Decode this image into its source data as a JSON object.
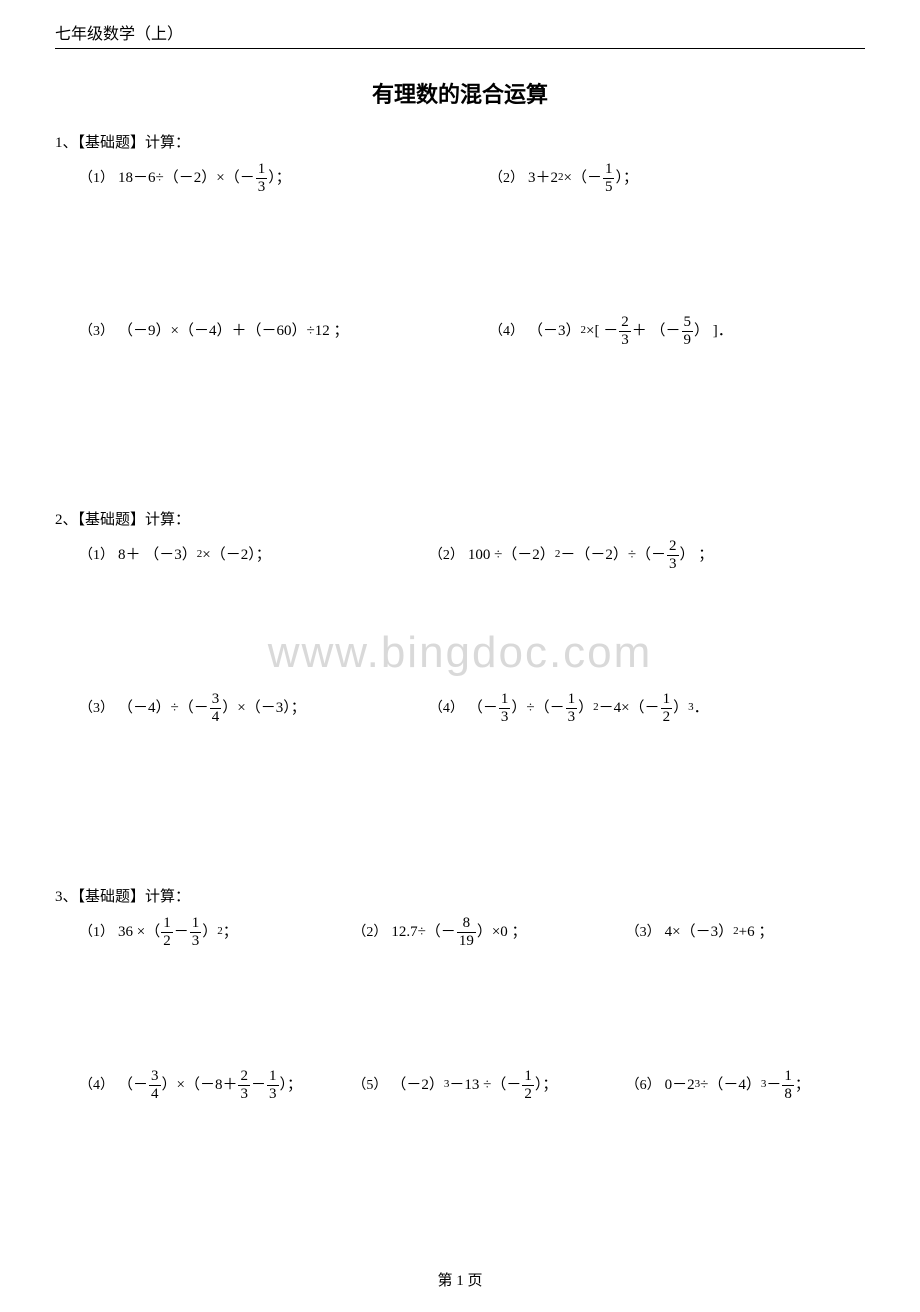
{
  "header": "七年级数学（上）",
  "title": "有理数的混合运算",
  "watermark": "www.bingdoc.com",
  "footer": "第 1 页",
  "sections": [
    {
      "label": "1、【基础题】计算：",
      "rows": [
        {
          "layout": "w2",
          "items": [
            {
              "idx": "（1）",
              "math": [
                {
                  "t": "18－6"
                },
                {
                  "t": "÷"
                },
                {
                  "t": "（－2）×（－"
                },
                {
                  "frac": {
                    "n": "1",
                    "d": "3"
                  }
                },
                {
                  "t": "）；"
                }
              ]
            },
            {
              "idx": "（2）",
              "math": [
                {
                  "t": "3＋2"
                },
                {
                  "sup": "2"
                },
                {
                  "t": " ×（－"
                },
                {
                  "frac": {
                    "n": "1",
                    "d": "5"
                  }
                },
                {
                  "t": "）；"
                }
              ]
            }
          ]
        },
        {
          "layout": "w2",
          "items": [
            {
              "idx": "（3）",
              "math": [
                {
                  "t": "（－9）×（－4）＋（－60）÷12 ；"
                }
              ]
            },
            {
              "idx": "（4）",
              "math": [
                {
                  "t": "（－3）"
                },
                {
                  "sup": "2"
                },
                {
                  "t": "×[  －"
                },
                {
                  "frac": {
                    "n": "2",
                    "d": "3"
                  }
                },
                {
                  "t": "＋ （－"
                },
                {
                  "frac": {
                    "n": "5",
                    "d": "9"
                  }
                },
                {
                  "t": "）  ]．"
                }
              ]
            }
          ]
        }
      ]
    },
    {
      "label": "2、【基础题】计算：",
      "rows": [
        {
          "layout": "w2b",
          "items": [
            {
              "idx": "（1）",
              "math": [
                {
                  "t": "8＋ （－3）"
                },
                {
                  "sup": "2"
                },
                {
                  "t": " ×（－2）；"
                }
              ]
            },
            {
              "idx": "（2）",
              "math": [
                {
                  "t": "100 ÷（－2）"
                },
                {
                  "sup": "2"
                },
                {
                  "t": " －（－2）÷（－"
                },
                {
                  "frac": {
                    "n": "2",
                    "d": "3"
                  }
                },
                {
                  "t": "） ；"
                }
              ]
            }
          ]
        },
        {
          "layout": "w2b",
          "items": [
            {
              "idx": "（3）",
              "math": [
                {
                  "t": "（－4）÷（－"
                },
                {
                  "frac": {
                    "n": "3",
                    "d": "4"
                  }
                },
                {
                  "t": "）×（－3）；"
                }
              ]
            },
            {
              "idx": "（4）",
              "math": [
                {
                  "t": "（－"
                },
                {
                  "frac": {
                    "n": "1",
                    "d": "3"
                  }
                },
                {
                  "t": "）÷（－"
                },
                {
                  "frac": {
                    "n": "1",
                    "d": "3"
                  }
                },
                {
                  "t": "）"
                },
                {
                  "sup": "2"
                },
                {
                  "t": " －4×（－"
                },
                {
                  "frac": {
                    "n": "1",
                    "d": "2"
                  }
                },
                {
                  "t": "）"
                },
                {
                  "sup": "3"
                },
                {
                  "t": "．"
                }
              ]
            }
          ]
        }
      ]
    },
    {
      "label": "3、【基础题】计算：",
      "rows": [
        {
          "layout": "w3",
          "items": [
            {
              "idx": "（1）",
              "math": [
                {
                  "t": "36 ×（"
                },
                {
                  "frac": {
                    "n": "1",
                    "d": "2"
                  }
                },
                {
                  "t": "－"
                },
                {
                  "frac": {
                    "n": "1",
                    "d": "3"
                  }
                },
                {
                  "t": "）"
                },
                {
                  "sup": "2"
                },
                {
                  "t": " ；"
                }
              ]
            },
            {
              "idx": "（2）",
              "math": [
                {
                  "t": "12.7÷（－"
                },
                {
                  "frac": {
                    "n": "8",
                    "d": "19"
                  }
                },
                {
                  "t": "）×0 ；"
                }
              ]
            },
            {
              "idx": "（3）",
              "math": [
                {
                  "t": " 4×（－3）"
                },
                {
                  "sup": "2"
                },
                {
                  "t": "+6 ；"
                }
              ]
            }
          ]
        },
        {
          "layout": "w3b",
          "final": true,
          "items": [
            {
              "idx": "（4）",
              "math": [
                {
                  "t": "（－"
                },
                {
                  "frac": {
                    "n": "3",
                    "d": "4"
                  }
                },
                {
                  "t": "）×（－8＋"
                },
                {
                  "frac": {
                    "n": "2",
                    "d": "3"
                  }
                },
                {
                  "t": "－"
                },
                {
                  "frac": {
                    "n": "1",
                    "d": "3"
                  }
                },
                {
                  "t": "）；"
                }
              ]
            },
            {
              "idx": "（5）",
              "math": [
                {
                  "t": "（－2）"
                },
                {
                  "sup": "3"
                },
                {
                  "t": "－13 ÷（－"
                },
                {
                  "frac": {
                    "n": "1",
                    "d": "2"
                  }
                },
                {
                  "t": "）；"
                }
              ]
            },
            {
              "idx": "（6）",
              "math": [
                {
                  "t": "0－2"
                },
                {
                  "sup": "3"
                },
                {
                  "t": " ÷（－4）"
                },
                {
                  "sup": "3"
                },
                {
                  "t": " －"
                },
                {
                  "frac": {
                    "n": "1",
                    "d": "8"
                  }
                },
                {
                  "t": " ；"
                }
              ]
            }
          ]
        }
      ]
    }
  ]
}
